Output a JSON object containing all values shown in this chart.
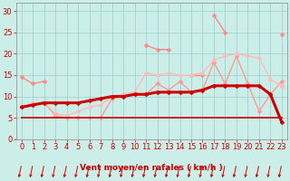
{
  "x": [
    0,
    1,
    2,
    3,
    4,
    5,
    6,
    7,
    8,
    9,
    10,
    11,
    12,
    13,
    14,
    15,
    16,
    17,
    18,
    19,
    20,
    21,
    22,
    23
  ],
  "series": [
    {
      "name": "line1_sparse_light",
      "color": "#ff8888",
      "linewidth": 1.0,
      "marker": "D",
      "markersize": 2.5,
      "values": [
        14.5,
        13.0,
        13.5,
        null,
        null,
        null,
        null,
        null,
        null,
        null,
        null,
        null,
        null,
        null,
        null,
        15.0,
        15.0,
        null,
        null,
        null,
        null,
        null,
        null,
        12.5
      ]
    },
    {
      "name": "line2_sparse_light_high",
      "color": "#ff8888",
      "linewidth": 1.0,
      "marker": "D",
      "markersize": 2.5,
      "values": [
        null,
        null,
        null,
        null,
        null,
        null,
        null,
        null,
        null,
        null,
        null,
        22.0,
        21.0,
        21.0,
        null,
        null,
        null,
        29.0,
        25.0,
        null,
        null,
        null,
        null,
        24.5
      ]
    },
    {
      "name": "line3_medium",
      "color": "#ff9999",
      "linewidth": 1.0,
      "marker": "D",
      "markersize": 2.5,
      "values": [
        7.5,
        8.0,
        8.5,
        5.5,
        5.0,
        5.0,
        5.0,
        5.0,
        9.5,
        10.0,
        10.5,
        10.5,
        13.0,
        11.5,
        13.5,
        11.0,
        11.5,
        18.0,
        13.0,
        19.5,
        13.0,
        6.5,
        10.5,
        13.5
      ]
    },
    {
      "name": "line4_rising",
      "color": "#ffbbbb",
      "linewidth": 1.0,
      "marker": "D",
      "markersize": 2.5,
      "values": [
        7.5,
        8.5,
        8.5,
        6.0,
        5.5,
        6.5,
        7.5,
        8.0,
        10.0,
        10.5,
        11.0,
        15.5,
        15.0,
        15.5,
        15.0,
        15.0,
        15.5,
        18.5,
        19.5,
        20.0,
        19.5,
        19.0,
        14.0,
        12.5
      ]
    },
    {
      "name": "line5_thick_dark",
      "color": "#cc0000",
      "linewidth": 2.2,
      "marker": "D",
      "markersize": 2.5,
      "values": [
        7.5,
        8.0,
        8.5,
        8.5,
        8.5,
        8.5,
        9.0,
        9.5,
        10.0,
        10.0,
        10.5,
        10.5,
        11.0,
        11.0,
        11.0,
        11.0,
        11.5,
        12.5,
        12.5,
        12.5,
        12.5,
        12.5,
        10.5,
        4.0
      ]
    },
    {
      "name": "line6_flat",
      "color": "#cc0000",
      "linewidth": 1.2,
      "marker": null,
      "markersize": 0,
      "values": [
        5.0,
        5.0,
        5.0,
        5.0,
        5.0,
        5.0,
        5.0,
        5.0,
        5.0,
        5.0,
        5.0,
        5.0,
        5.0,
        5.0,
        5.0,
        5.0,
        5.0,
        5.0,
        5.0,
        5.0,
        5.0,
        5.0,
        5.0,
        5.0
      ]
    }
  ],
  "xlim": [
    -0.5,
    23.5
  ],
  "ylim": [
    0,
    32
  ],
  "yticks": [
    0,
    5,
    10,
    15,
    20,
    25,
    30
  ],
  "xticks": [
    0,
    1,
    2,
    3,
    4,
    5,
    6,
    7,
    8,
    9,
    10,
    11,
    12,
    13,
    14,
    15,
    16,
    17,
    18,
    19,
    20,
    21,
    22,
    23
  ],
  "xlabel": "Vent moyen/en rafales ( km/h )",
  "background_color": "#cceee8",
  "grid_color": "#99cccc",
  "tick_color": "#cc0000",
  "label_color": "#cc0000",
  "arrow_color": "#cc0000",
  "spine_color": "#888888"
}
